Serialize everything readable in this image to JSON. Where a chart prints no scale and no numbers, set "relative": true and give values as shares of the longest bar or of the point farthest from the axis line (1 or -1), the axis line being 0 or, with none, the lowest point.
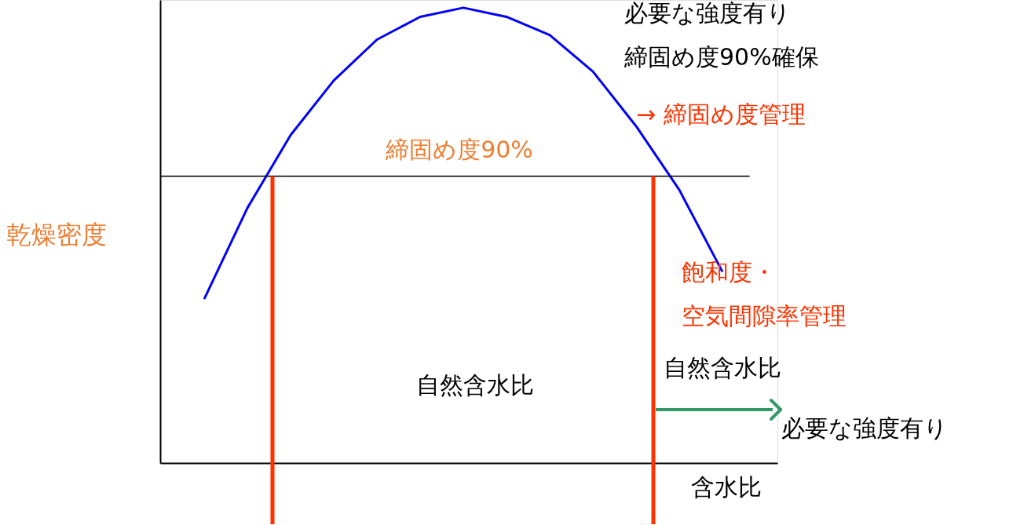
{
  "chart_data": {
    "type": "line",
    "relative": true,
    "xlabel": "含水比",
    "ylabel": "乾燥密度",
    "categories": [
      null,
      null,
      null,
      null,
      null,
      null,
      null,
      null,
      null,
      null,
      null,
      null,
      null
    ],
    "marker": "none",
    "line_style": "solid",
    "series": [
      {
        "color": "#0000ff",
        "values": [
          0.36,
          0.56,
          0.72,
          0.84,
          0.93,
          0.98,
          1.0,
          0.98,
          0.94,
          0.86,
          0.74,
          0.6,
          0.42
        ]
      }
    ],
    "ref_lines": [
      {
        "axis": "y",
        "value": 0.63,
        "label": "締固め度90%",
        "color": "#000000"
      }
    ],
    "annotations": [
      "必要な強度有り締固め度90%確保",
      "→ 締固め度管理",
      "飽和度・空気間隙率管理",
      "自然含水比",
      "必要な強度有り",
      "自然含水比"
    ]
  }
}
